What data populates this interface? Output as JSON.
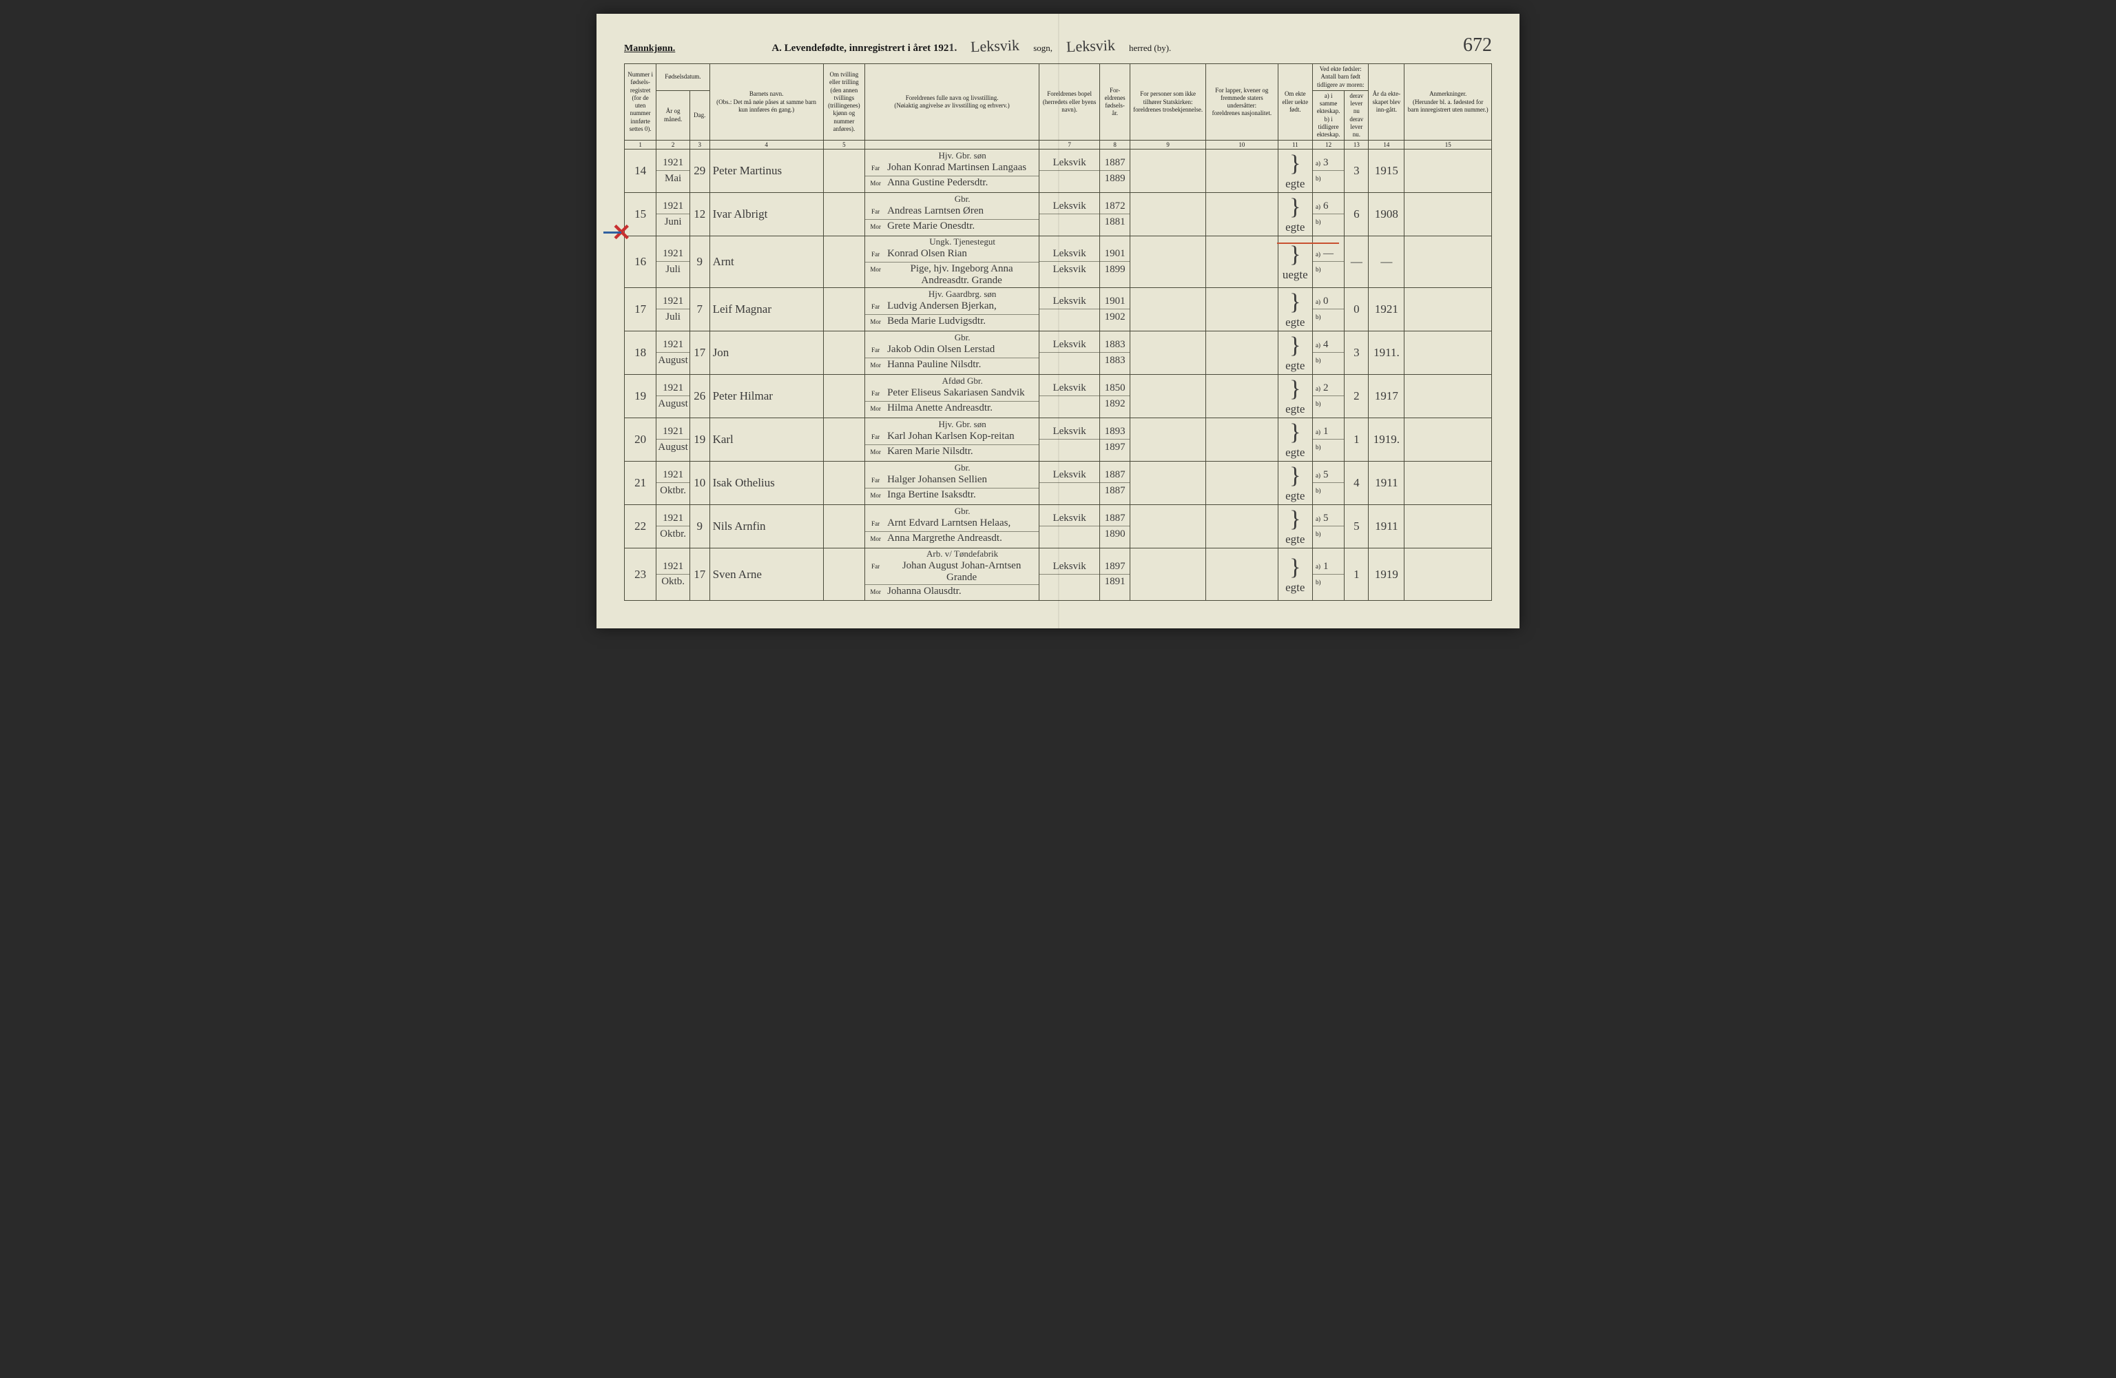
{
  "header": {
    "gender": "Mannkjønn.",
    "title": "A. Levendefødte, innregistrert i året 192",
    "year_suffix": "1.",
    "sogn": "Leksvik",
    "sogn_label": "sogn,",
    "herred": "Leksvik",
    "herred_label": "herred (by).",
    "page_number": "672"
  },
  "columns": {
    "c1": "Nummer i fødsels-registret (for de uten nummer innførte settes 0).",
    "c2_top": "Fødselsdatum.",
    "c2a": "År og måned.",
    "c2b": "Dag.",
    "c4a": "Barnets navn.",
    "c4b": "(Obs.: Det må nøie påses at samme barn kun innføres én gang.)",
    "c5": "Om tvilling eller trilling (den annen tvillings (trillingenes) kjønn og nummer anføres).",
    "c6a": "Foreldrenes fulle navn og livsstilling.",
    "c6b": "(Nøiaktig angivelse av livsstilling og erhverv.)",
    "c7a": "Foreldrenes bopel",
    "c7b": "(herredets eller byens navn).",
    "c8": "For-eldrenes fødsels-år.",
    "c9a": "For personer som ikke tilhører Statskirken:",
    "c9b": "foreldrenes trosbekjennelse.",
    "c10a": "For lapper, kvener og fremmede staters undersåtter:",
    "c10b": "foreldrenes nasjonalitet.",
    "c11": "Om ekte eller uekte født.",
    "c12_top": "Ved ekte fødsler: Antall barn født tidligere av moren:",
    "c12a": "a) i samme ekteskap.",
    "c12b": "b) i tidligere ekteskap.",
    "c13a": "derav lever nu",
    "c13b": "derav lever nu.",
    "c14": "År da ekte-skapet blev inn-gått.",
    "c15a": "Anmerkninger.",
    "c15b": "(Herunder bl. a. fødested for barn innregistrert uten nummer.)"
  },
  "colnums": [
    "1",
    "2",
    "3",
    "4",
    "5",
    "",
    "7",
    "8",
    "9",
    "10",
    "11",
    "12",
    "13",
    "14",
    "15"
  ],
  "rows": [
    {
      "num": "14",
      "year_month_a": "1921",
      "year_month_b": "Mai",
      "day": "29",
      "child": "Peter Martinus",
      "occupation": "Hjv. Gbr. søn",
      "father": "Johan Konrad Martinsen Langaas",
      "mother": "Anna Gustine Pedersdtr.",
      "residence_a": "Leksvik",
      "residence_b": "",
      "parent_year_a": "1887",
      "parent_year_b": "1889",
      "legit": "egte",
      "a_val": "3",
      "lever": "3",
      "married": "1915"
    },
    {
      "num": "15",
      "year_month_a": "1921",
      "year_month_b": "Juni",
      "day": "12",
      "child": "Ivar Albrigt",
      "occupation": "Gbr.",
      "father": "Andreas Larntsen Øren",
      "mother": "Grete Marie Onesdtr.",
      "residence_a": "Leksvik",
      "residence_b": "",
      "parent_year_a": "1872",
      "parent_year_b": "1881",
      "legit": "egte",
      "a_val": "6",
      "lever": "6",
      "married": "1908"
    },
    {
      "num": "16",
      "year_month_a": "1921",
      "year_month_b": "Juli",
      "day": "9",
      "child": "Arnt",
      "occupation": "Ungk. Tjenestegut",
      "father": "Konrad Olsen Rian",
      "mother": "Pige, hjv. Ingeborg Anna Andreasdtr. Grande",
      "residence_a": "Leksvik",
      "residence_b": "Leksvik",
      "parent_year_a": "1901",
      "parent_year_b": "1899",
      "legit": "uegte",
      "a_val": "—",
      "lever": "—",
      "married": "—"
    },
    {
      "num": "17",
      "year_month_a": "1921",
      "year_month_b": "Juli",
      "day": "7",
      "child": "Leif Magnar",
      "occupation": "Hjv. Gaardbrg. søn",
      "father": "Ludvig Andersen Bjerkan,",
      "mother": "Beda Marie Ludvigsdtr.",
      "residence_a": "Leksvik",
      "residence_b": "",
      "parent_year_a": "1901",
      "parent_year_b": "1902",
      "legit": "egte",
      "a_val": "0",
      "lever": "0",
      "married": "1921"
    },
    {
      "num": "18",
      "year_month_a": "1921",
      "year_month_b": "August",
      "day": "17",
      "child": "Jon",
      "occupation": "Gbr.",
      "father": "Jakob Odin Olsen Lerstad",
      "mother": "Hanna Pauline Nilsdtr.",
      "residence_a": "Leksvik",
      "residence_b": "",
      "parent_year_a": "1883",
      "parent_year_b": "1883",
      "legit": "egte",
      "a_val": "4",
      "lever": "3",
      "married": "1911."
    },
    {
      "num": "19",
      "year_month_a": "1921",
      "year_month_b": "August",
      "day": "26",
      "child": "Peter Hilmar",
      "occupation": "Afdød Gbr.",
      "father": "Peter Eliseus Sakariasen Sandvik",
      "mother": "Hilma Anette Andreasdtr.",
      "residence_a": "Leksvik",
      "residence_b": "",
      "parent_year_a": "1850",
      "parent_year_b": "1892",
      "legit": "egte",
      "a_val": "2",
      "lever": "2",
      "married": "1917"
    },
    {
      "num": "20",
      "year_month_a": "1921",
      "year_month_b": "August",
      "day": "19",
      "child": "Karl",
      "occupation": "Hjv. Gbr. søn",
      "father": "Karl Johan Karlsen Kop-reitan",
      "mother": "Karen Marie Nilsdtr.",
      "residence_a": "Leksvik",
      "residence_b": "",
      "parent_year_a": "1893",
      "parent_year_b": "1897",
      "legit": "egte",
      "a_val": "1",
      "lever": "1",
      "married": "1919."
    },
    {
      "num": "21",
      "year_month_a": "1921",
      "year_month_b": "Oktbr.",
      "day": "10",
      "child": "Isak Othelius",
      "occupation": "Gbr.",
      "father": "Halger Johansen Sellien",
      "mother": "Inga Bertine Isaksdtr.",
      "residence_a": "Leksvik",
      "residence_b": "",
      "parent_year_a": "1887",
      "parent_year_b": "1887",
      "legit": "egte",
      "a_val": "5",
      "lever": "4",
      "married": "1911"
    },
    {
      "num": "22",
      "year_month_a": "1921",
      "year_month_b": "Oktbr.",
      "day": "9",
      "child": "Nils Arnfin",
      "occupation": "Gbr.",
      "father": "Arnt Edvard Larntsen Helaas,",
      "mother": "Anna Margrethe Andreasdt.",
      "residence_a": "Leksvik",
      "residence_b": "",
      "parent_year_a": "1887",
      "parent_year_b": "1890",
      "legit": "egte",
      "a_val": "5",
      "lever": "5",
      "married": "1911"
    },
    {
      "num": "23",
      "year_month_a": "1921",
      "year_month_b": "Oktb.",
      "day": "17",
      "child": "Sven Arne",
      "occupation": "Arb. v/ Tøndefabrik",
      "father": "Johan August Johan-Arntsen Grande",
      "mother": "Johanna Olausdtr.",
      "residence_a": "Leksvik",
      "residence_b": "",
      "parent_year_a": "1897",
      "parent_year_b": "1891",
      "legit": "egte",
      "a_val": "1",
      "lever": "1",
      "married": "1919"
    }
  ]
}
